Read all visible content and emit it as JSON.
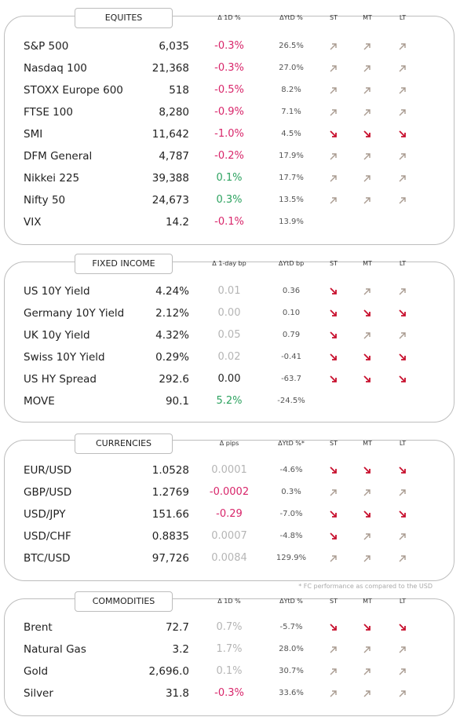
{
  "sections": [
    {
      "title": "EQUITES",
      "headers": [
        "Δ 1D %",
        "ΔYtD %",
        "ST",
        "MT",
        "LT"
      ],
      "rows": [
        {
          "cells": [
            "S&P 500",
            "6,035",
            "-0.3%",
            "26.5%"
          ],
          "change_color": "#d8256a",
          "arrows": [
            "up",
            "up",
            "up"
          ]
        },
        {
          "cells": [
            "Nasdaq 100",
            "21,368",
            "-0.3%",
            "27.0%"
          ],
          "change_color": "#d8256a",
          "arrows": [
            "up",
            "up",
            "up"
          ]
        },
        {
          "cells": [
            "STOXX Europe 600",
            "518",
            "-0.5%",
            "8.2%"
          ],
          "change_color": "#d8256a",
          "arrows": [
            "up",
            "up",
            "up"
          ]
        },
        {
          "cells": [
            "FTSE 100",
            "8,280",
            "-0.9%",
            "7.1%"
          ],
          "change_color": "#d8256a",
          "arrows": [
            "up",
            "up",
            "up"
          ]
        },
        {
          "cells": [
            "SMI",
            "11,642",
            "-1.0%",
            "4.5%"
          ],
          "change_color": "#d8256a",
          "arrows": [
            "down",
            "down",
            "down"
          ]
        },
        {
          "cells": [
            "DFM General",
            "4,787",
            "-0.2%",
            "17.9%"
          ],
          "change_color": "#d8256a",
          "arrows": [
            "up",
            "up",
            "up"
          ]
        },
        {
          "cells": [
            "Nikkei 225",
            "39,388",
            "0.1%",
            "17.7%"
          ],
          "change_color": "#2ca25f",
          "arrows": [
            "up",
            "up",
            "up"
          ]
        },
        {
          "cells": [
            "Nifty  50",
            "24,673",
            "0.3%",
            "13.5%"
          ],
          "change_color": "#2ca25f",
          "arrows": [
            "up",
            "up",
            "up"
          ]
        },
        {
          "cells": [
            "VIX",
            "14.2",
            "-0.1%",
            "13.9%"
          ],
          "change_color": "#d8256a",
          "arrows": []
        }
      ]
    },
    {
      "title": "FIXED INCOME",
      "headers": [
        "Δ 1-day bp",
        "ΔYtD bp",
        "ST",
        "MT",
        "LT"
      ],
      "rows": [
        {
          "cells": [
            "US 10Y Yield",
            "4.24%",
            "0.01",
            "0.36"
          ],
          "change_color": "#b5b5b5",
          "arrows": [
            "down",
            "up",
            "up"
          ]
        },
        {
          "cells": [
            "Germany 10Y Yield",
            "2.12%",
            "0.00",
            "0.10"
          ],
          "change_color": "#b5b5b5",
          "arrows": [
            "down",
            "down",
            "down"
          ]
        },
        {
          "cells": [
            "UK 10y Yield",
            "4.32%",
            "0.05",
            "0.79"
          ],
          "change_color": "#b5b5b5",
          "arrows": [
            "down",
            "up",
            "up"
          ]
        },
        {
          "cells": [
            "Swiss 10Y Yield",
            "0.29%",
            "0.02",
            "-0.41"
          ],
          "change_color": "#b5b5b5",
          "arrows": [
            "down",
            "down",
            "down"
          ]
        },
        {
          "cells": [
            "US HY Spread",
            "292.6",
            "0.00",
            "-63.7"
          ],
          "change_color": "#222222",
          "arrows": [
            "down",
            "down",
            "down"
          ]
        },
        {
          "cells": [
            "MOVE",
            "90.1",
            "5.2%",
            "-24.5%"
          ],
          "change_color": "#2ca25f",
          "arrows": []
        }
      ]
    },
    {
      "title": "CURRENCIES",
      "headers": [
        "Δ pips",
        "ΔYtD %*",
        "ST",
        "MT",
        "LT"
      ],
      "rows": [
        {
          "cells": [
            "EUR/USD",
            "1.0528",
            "0.0001",
            "-4.6%"
          ],
          "change_color": "#b5b5b5",
          "arrows": [
            "down",
            "down",
            "down"
          ]
        },
        {
          "cells": [
            "GBP/USD",
            "1.2769",
            "-0.0002",
            "0.3%"
          ],
          "change_color": "#d8256a",
          "arrows": [
            "up",
            "up",
            "up"
          ]
        },
        {
          "cells": [
            "USD/JPY",
            "151.66",
            "-0.29",
            "-7.0%"
          ],
          "change_color": "#d8256a",
          "arrows": [
            "down",
            "down",
            "down"
          ]
        },
        {
          "cells": [
            "USD/CHF",
            "0.8835",
            "0.0007",
            "-4.8%"
          ],
          "change_color": "#b5b5b5",
          "arrows": [
            "down",
            "up",
            "up"
          ]
        },
        {
          "cells": [
            "BTC/USD",
            "97,726",
            "0.0084",
            "129.9%"
          ],
          "change_color": "#b5b5b5",
          "arrows": [
            "up",
            "up",
            "up"
          ]
        }
      ]
    },
    {
      "title": "COMMODITIES",
      "headers": [
        "Δ 1D %",
        "ΔYtD %",
        "ST",
        "MT",
        "LT"
      ],
      "rows": [
        {
          "cells": [
            "Brent",
            "72.7",
            "0.7%",
            "-5.7%"
          ],
          "change_color": "#b5b5b5",
          "arrows": [
            "down",
            "down",
            "down"
          ]
        },
        {
          "cells": [
            "Natural Gas",
            "3.2",
            "1.7%",
            "28.0%"
          ],
          "change_color": "#b5b5b5",
          "arrows": [
            "up",
            "up",
            "up"
          ]
        },
        {
          "cells": [
            "Gold",
            "2,696.0",
            "0.1%",
            "30.7%"
          ],
          "change_color": "#b5b5b5",
          "arrows": [
            "up",
            "up",
            "up"
          ]
        },
        {
          "cells": [
            "Silver",
            "31.8",
            "-0.3%",
            "33.6%"
          ],
          "change_color": "#d8256a",
          "arrows": [
            "up",
            "up",
            "up"
          ]
        }
      ]
    }
  ],
  "footnote": "* FC performance as compared to the USD"
}
